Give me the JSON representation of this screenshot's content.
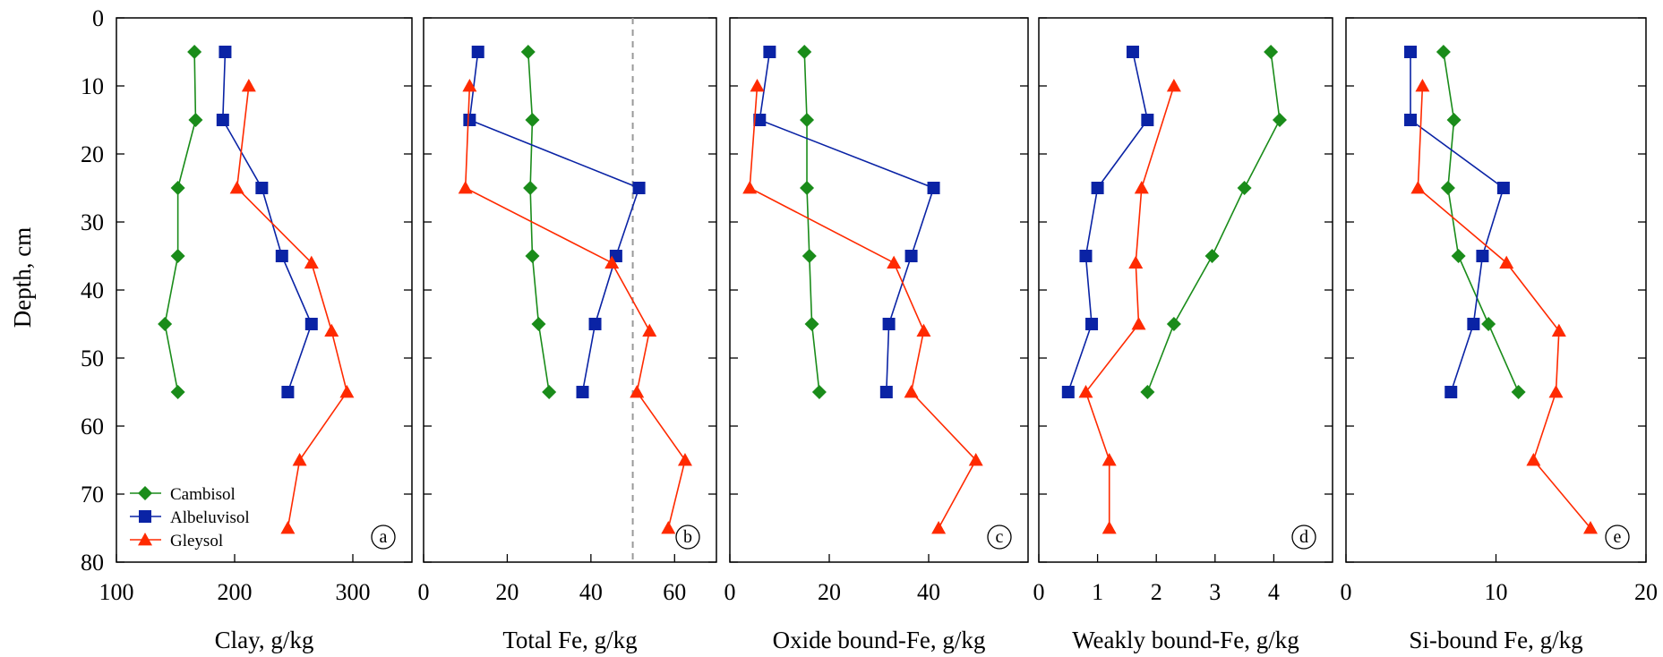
{
  "figure": {
    "ylabel": "Depth, cm",
    "y_ticks": [
      0,
      10,
      20,
      30,
      40,
      50,
      60,
      70,
      80
    ],
    "ylim": [
      80,
      0
    ],
    "colors": {
      "Cambisol": "#1a8c1a",
      "Albeluvisol": "#0a23a5",
      "Gleysol": "#ff2a00",
      "reference_line": "#999999"
    },
    "markers": {
      "Cambisol": "diamond",
      "Albeluvisol": "square",
      "Gleysol": "triangle"
    },
    "legend": {
      "placement": "bottom-left of panel a",
      "entries": [
        "Cambisol",
        "Albeluvisol",
        "Gleysol"
      ]
    }
  },
  "chart_data": [
    {
      "type": "line",
      "panel": "a",
      "xlabel": "Clay, g/kg",
      "xlim": [
        100,
        350
      ],
      "x_ticks": [
        100,
        200,
        300
      ],
      "series": [
        {
          "name": "Cambisol",
          "points": [
            [
              166,
              5
            ],
            [
              167,
              15
            ],
            [
              152,
              25
            ],
            [
              152,
              35
            ],
            [
              141,
              45
            ],
            [
              152,
              55
            ]
          ]
        },
        {
          "name": "Albeluvisol",
          "points": [
            [
              192,
              5
            ],
            [
              190,
              15
            ],
            [
              223,
              25
            ],
            [
              240,
              35
            ],
            [
              265,
              45
            ],
            [
              245,
              55
            ]
          ]
        },
        {
          "name": "Gleysol",
          "points": [
            [
              212,
              10
            ],
            [
              202,
              25
            ],
            [
              265,
              36
            ],
            [
              282,
              46
            ],
            [
              295,
              55
            ],
            [
              255,
              65
            ],
            [
              245,
              75
            ]
          ]
        }
      ]
    },
    {
      "type": "line",
      "panel": "b",
      "xlabel": "Total Fe, g/kg",
      "xlim": [
        0,
        70
      ],
      "x_ticks": [
        0,
        20,
        40,
        60
      ],
      "reference_line": {
        "x": 50,
        "style": "dashed"
      },
      "series": [
        {
          "name": "Cambisol",
          "points": [
            [
              25,
              5
            ],
            [
              26,
              15
            ],
            [
              25.5,
              25
            ],
            [
              26,
              35
            ],
            [
              27.5,
              45
            ],
            [
              30,
              55
            ]
          ]
        },
        {
          "name": "Albeluvisol",
          "points": [
            [
              13,
              5
            ],
            [
              11,
              15
            ],
            [
              51.5,
              25
            ],
            [
              46,
              35
            ],
            [
              41,
              45
            ],
            [
              38,
              55
            ]
          ]
        },
        {
          "name": "Gleysol",
          "points": [
            [
              11,
              10
            ],
            [
              10,
              25
            ],
            [
              45,
              36
            ],
            [
              54,
              46
            ],
            [
              51,
              55
            ],
            [
              62.5,
              65
            ],
            [
              58.5,
              75
            ]
          ]
        }
      ]
    },
    {
      "type": "line",
      "panel": "c",
      "xlabel": "Oxide bound-Fe, g/kg",
      "xlim": [
        0,
        60
      ],
      "x_ticks": [
        0,
        20,
        40
      ],
      "series": [
        {
          "name": "Cambisol",
          "points": [
            [
              15,
              5
            ],
            [
              15.5,
              15
            ],
            [
              15.5,
              25
            ],
            [
              16,
              35
            ],
            [
              16.5,
              45
            ],
            [
              18,
              55
            ]
          ]
        },
        {
          "name": "Albeluvisol",
          "points": [
            [
              8,
              5
            ],
            [
              6,
              15
            ],
            [
              41,
              25
            ],
            [
              36.5,
              35
            ],
            [
              32,
              45
            ],
            [
              31.5,
              55
            ]
          ]
        },
        {
          "name": "Gleysol",
          "points": [
            [
              5.5,
              10
            ],
            [
              4,
              25
            ],
            [
              33,
              36
            ],
            [
              39,
              46
            ],
            [
              36.5,
              55
            ],
            [
              49.5,
              65
            ],
            [
              42,
              75
            ]
          ]
        }
      ]
    },
    {
      "type": "line",
      "panel": "d",
      "xlabel": "Weakly bound-Fe, g/kg",
      "xlim": [
        0,
        5
      ],
      "x_ticks": [
        0,
        1,
        2,
        3,
        4
      ],
      "series": [
        {
          "name": "Cambisol",
          "points": [
            [
              3.95,
              5
            ],
            [
              4.1,
              15
            ],
            [
              3.5,
              25
            ],
            [
              2.95,
              35
            ],
            [
              2.3,
              45
            ],
            [
              1.85,
              55
            ]
          ]
        },
        {
          "name": "Albeluvisol",
          "points": [
            [
              1.6,
              5
            ],
            [
              1.85,
              15
            ],
            [
              1.0,
              25
            ],
            [
              0.8,
              35
            ],
            [
              0.9,
              45
            ],
            [
              0.5,
              55
            ]
          ]
        },
        {
          "name": "Gleysol",
          "points": [
            [
              2.3,
              10
            ],
            [
              1.75,
              25
            ],
            [
              1.65,
              36
            ],
            [
              1.7,
              45
            ],
            [
              0.8,
              55
            ],
            [
              1.2,
              65
            ],
            [
              1.2,
              75
            ]
          ]
        }
      ]
    },
    {
      "type": "line",
      "panel": "e",
      "xlabel": "Si-bound Fe, g/kg",
      "xlim": [
        0,
        20
      ],
      "x_ticks": [
        0,
        10,
        20
      ],
      "series": [
        {
          "name": "Cambisol",
          "points": [
            [
              6.5,
              5
            ],
            [
              7.2,
              15
            ],
            [
              6.8,
              25
            ],
            [
              7.5,
              35
            ],
            [
              9.5,
              45
            ],
            [
              11.5,
              55
            ]
          ]
        },
        {
          "name": "Albeluvisol",
          "points": [
            [
              4.3,
              5
            ],
            [
              4.3,
              15
            ],
            [
              10.5,
              25
            ],
            [
              9.1,
              35
            ],
            [
              8.5,
              45
            ],
            [
              7.0,
              55
            ]
          ]
        },
        {
          "name": "Gleysol",
          "points": [
            [
              5.1,
              10
            ],
            [
              4.8,
              25
            ],
            [
              10.7,
              36
            ],
            [
              14.2,
              46
            ],
            [
              14.0,
              55
            ],
            [
              12.5,
              65
            ],
            [
              16.3,
              75
            ]
          ]
        }
      ]
    }
  ]
}
